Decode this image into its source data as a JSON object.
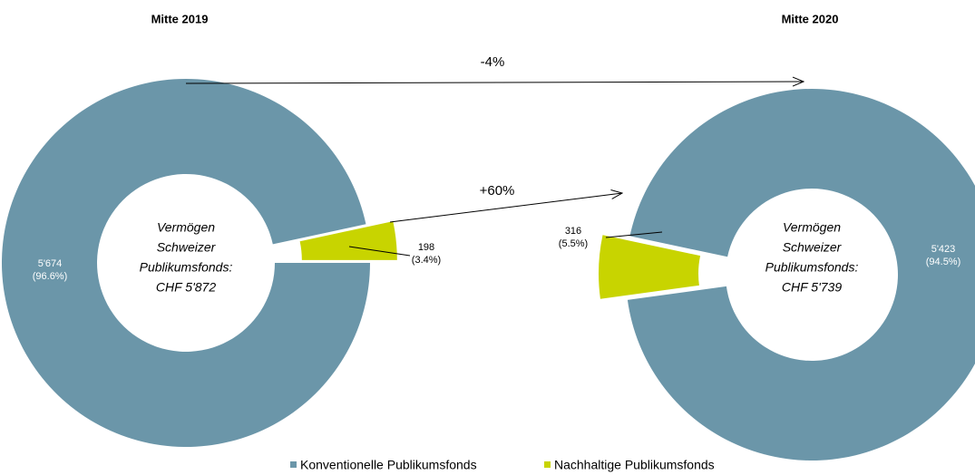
{
  "chart_data": [
    {
      "type": "pie",
      "title": "Mitte 2019",
      "categories": [
        "Konventionelle Publikumsfonds",
        "Nachhaltige Publikumsfonds"
      ],
      "colors": [
        "#6b96a9",
        "#c8d400"
      ],
      "values": [
        5674,
        198
      ],
      "value_labels": [
        "5'674",
        "198"
      ],
      "percent_values": [
        96.6,
        3.4
      ],
      "percent_labels": [
        "(96.6%)",
        "(3.4%)"
      ],
      "center_lines": [
        "Vermögen",
        "Schweizer",
        "Publikumsfonds:"
      ],
      "total": 5872,
      "total_label": "CHF 5'872"
    },
    {
      "type": "pie",
      "title": "Mitte 2020",
      "categories": [
        "Konventionelle Publikumsfonds",
        "Nachhaltige Publikumsfonds"
      ],
      "colors": [
        "#6b96a9",
        "#c8d400"
      ],
      "values": [
        5423,
        316
      ],
      "value_labels": [
        "5'423",
        "316"
      ],
      "percent_values": [
        94.5,
        5.5
      ],
      "percent_labels": [
        "(94.5%)",
        "(5.5%)"
      ],
      "center_lines": [
        "Vermögen",
        "Schweizer",
        "Publikumsfonds:"
      ],
      "total": 5739,
      "total_label": "CHF 5'739"
    }
  ],
  "annotations": [
    "-4%",
    "+60%"
  ]
}
